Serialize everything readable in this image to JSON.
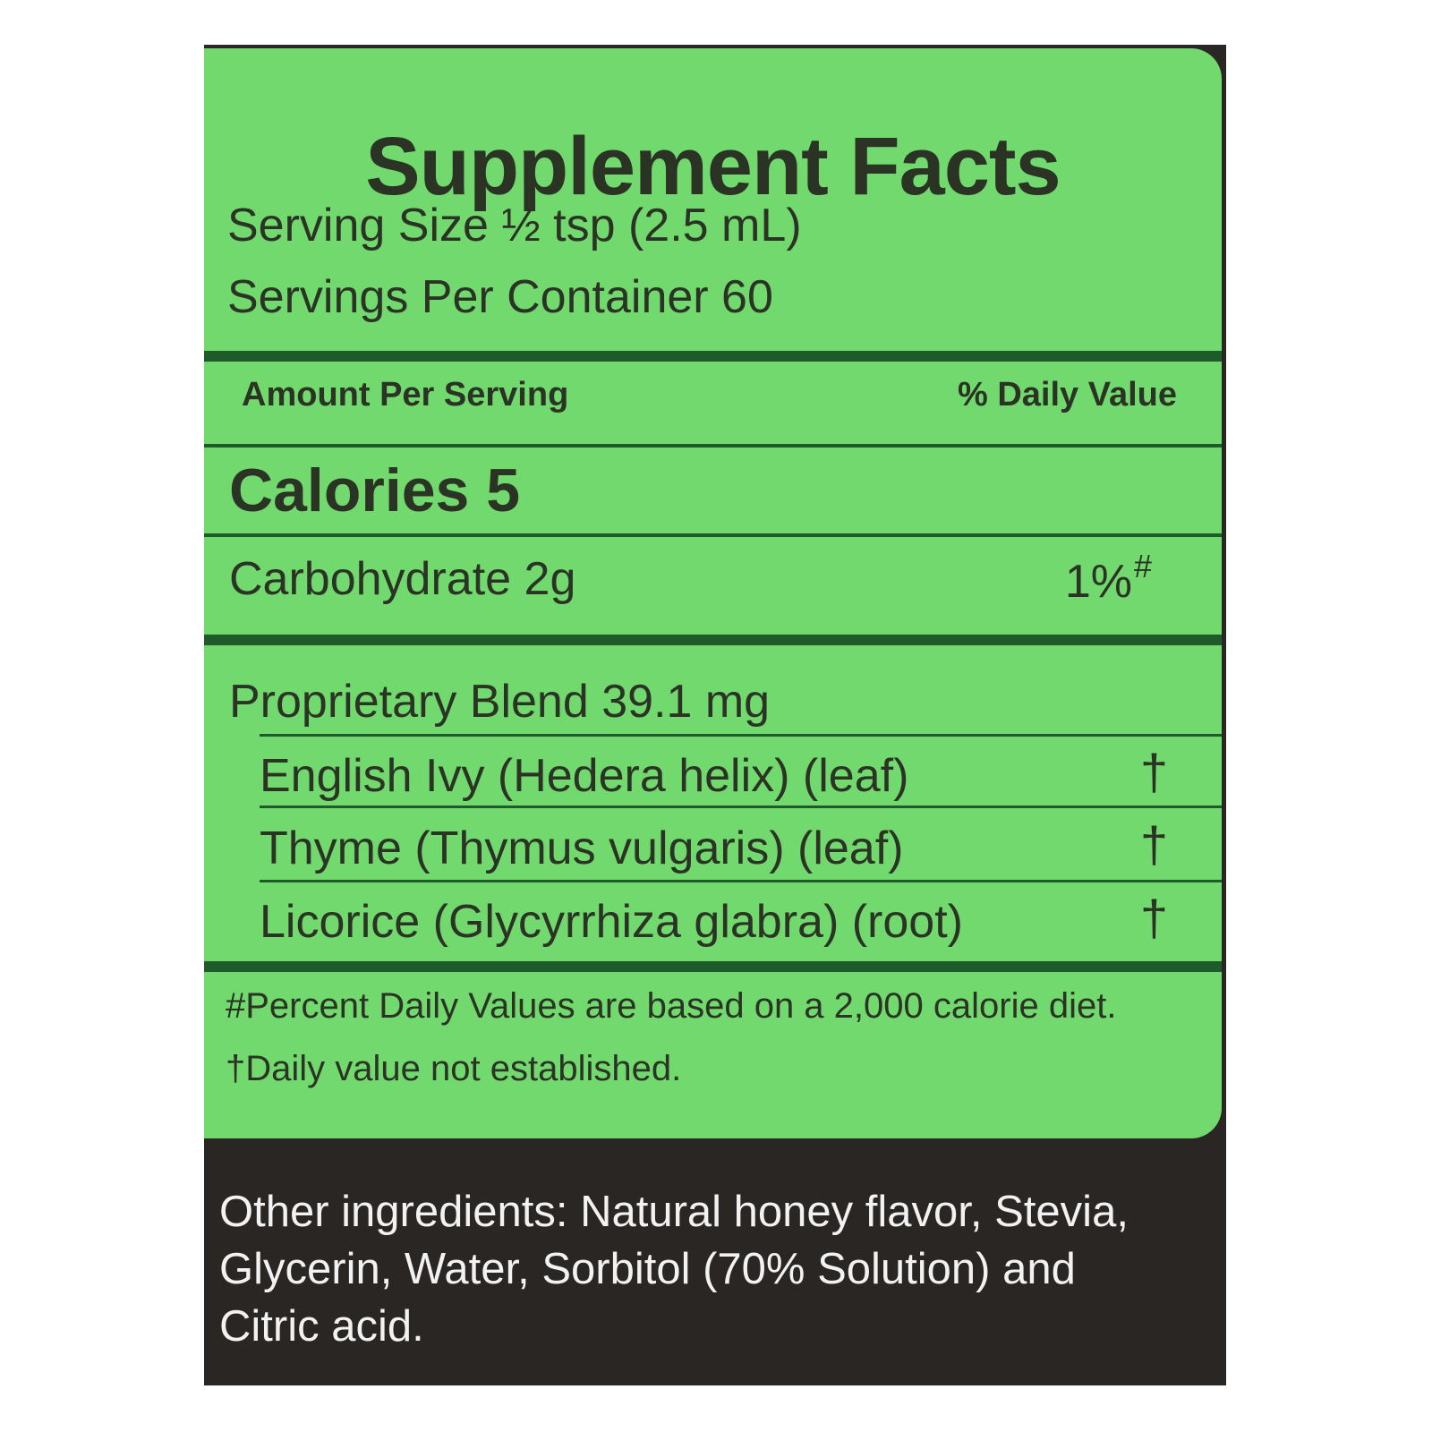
{
  "label": {
    "title": "Supplement Facts",
    "serving_size": "Serving Size ½ tsp (2.5 mL)",
    "servings_per_container": "Servings Per Container 60",
    "header_amount": "Amount Per Serving",
    "header_dv": "% Daily Value",
    "calories": "Calories 5",
    "nutrients": [
      {
        "name": "Carbohydrate 2g",
        "dv": "1%",
        "dv_mark": "#"
      }
    ],
    "blend": {
      "name": "Proprietary Blend 39.1 mg",
      "ingredients": [
        {
          "name": "English Ivy (Hedera helix) (leaf)",
          "dv": "†"
        },
        {
          "name": "Thyme (Thymus vulgaris) (leaf)",
          "dv": "†"
        },
        {
          "name": "Licorice (Glycyrrhiza glabra) (root)",
          "dv": "†"
        }
      ]
    },
    "footnotes": [
      "#Percent Daily Values are based on a 2,000 calorie diet.",
      "†Daily value not established."
    ]
  },
  "other_ingredients": "Other ingredients: Natural honey flavor, Stevia, Glycerin, Water, Sorbitol (70% Solution) and Citric acid.",
  "colors": {
    "panel_green": "#72d96e",
    "rule_green": "#1f5a2a",
    "background_dark": "#2a2624"
  }
}
